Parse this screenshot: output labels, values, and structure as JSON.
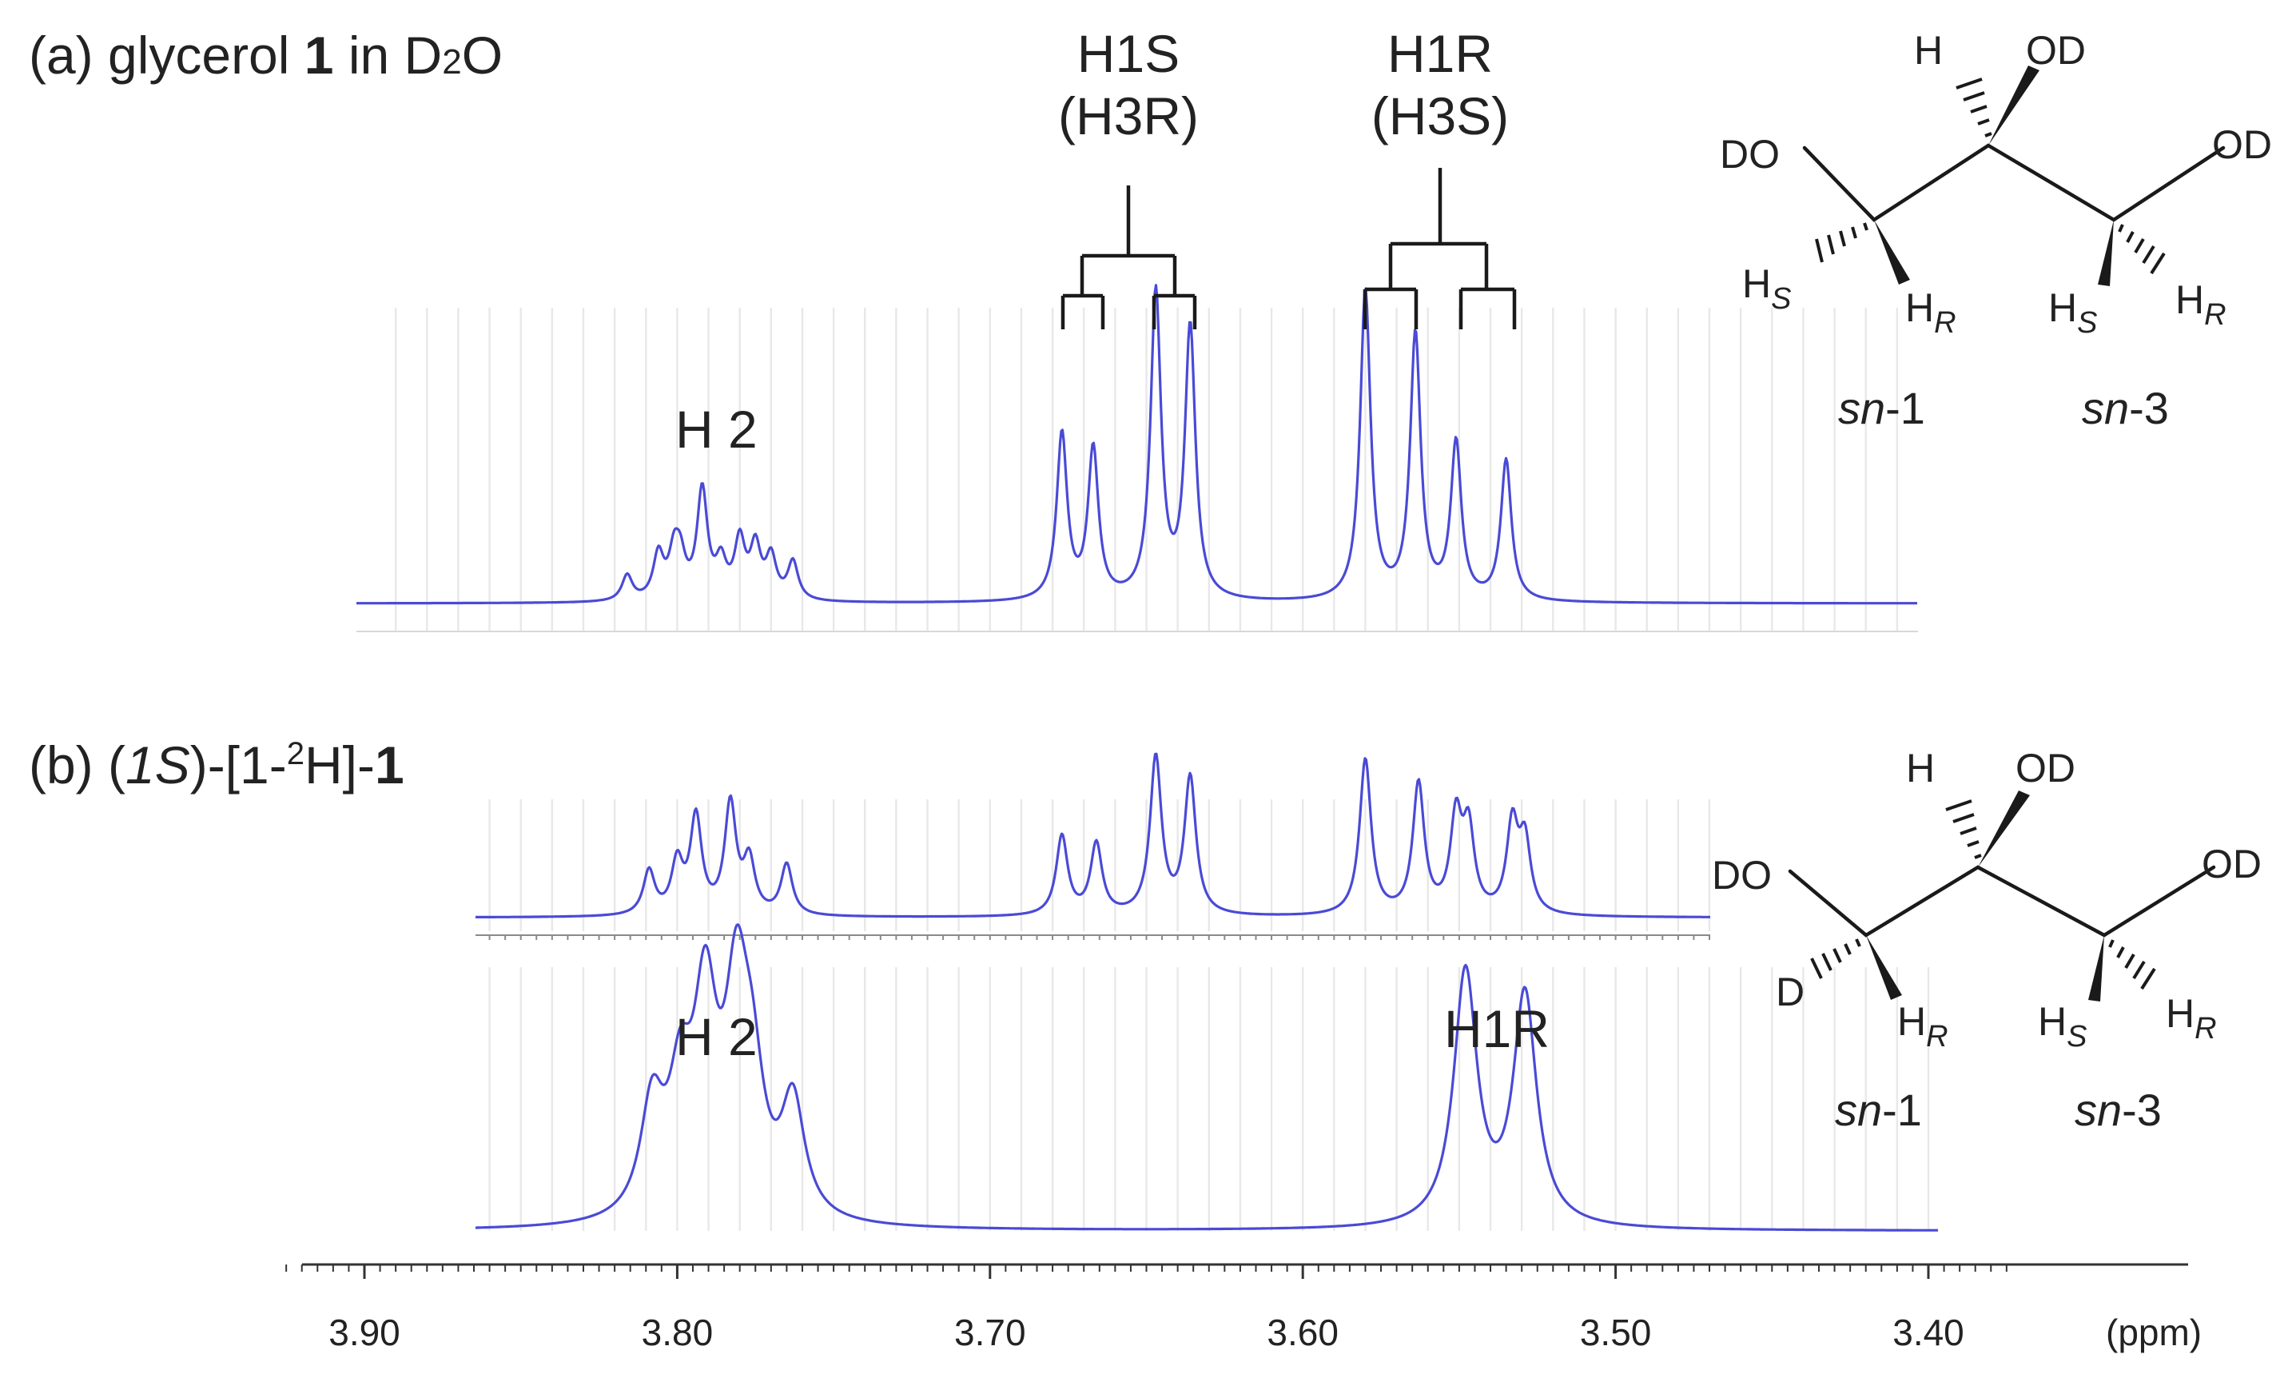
{
  "colors": {
    "trace": "#4a4ad6",
    "ink": "#222222",
    "guide": "#e8e8e8"
  },
  "chart_data": [
    {
      "type": "line",
      "panel": "(a)",
      "title_parts": {
        "prefix": "(a)  glycerol ",
        "bold": "1",
        "mid": " in D",
        "sub": "2",
        "suffix": "O"
      },
      "x_range_ppm": [
        3.4,
        3.9
      ],
      "x_reversed": true,
      "peak_labels": {
        "h2": "H 2",
        "h1s_top": "H1S",
        "h1s_bottom": "(H3R)",
        "h1r_top": "H1R",
        "h1r_bottom": "(H3S)"
      },
      "x": [
        3.816,
        3.806,
        3.801,
        3.799,
        3.792,
        3.786,
        3.78,
        3.775,
        3.77,
        3.763,
        3.677,
        3.667,
        3.647,
        3.636,
        3.58,
        3.564,
        3.551,
        3.535
      ],
      "y": [
        0.08,
        0.14,
        0.13,
        0.11,
        0.34,
        0.11,
        0.18,
        0.16,
        0.13,
        0.12,
        0.52,
        0.47,
        0.96,
        0.85,
        0.97,
        0.83,
        0.49,
        0.44
      ],
      "linewidth_ppm": 0.002
    },
    {
      "type": "line",
      "panel": "(b)",
      "title_parts": {
        "prefix": "(b)  (",
        "italic": "1S",
        "mid": ")-[1-",
        "sup": "2",
        "suffix": "H]-",
        "bold": "1"
      },
      "x_range_ppm": [
        3.4,
        3.9
      ],
      "x_reversed": true,
      "traces": [
        {
          "name": "upper",
          "x": [
            3.809,
            3.8,
            3.794,
            3.783,
            3.777,
            3.765,
            3.677,
            3.666,
            3.647,
            3.636,
            3.58,
            3.563,
            3.551,
            3.547,
            3.533,
            3.529
          ],
          "y": [
            0.26,
            0.3,
            0.57,
            0.65,
            0.31,
            0.3,
            0.47,
            0.42,
            0.93,
            0.81,
            0.92,
            0.77,
            0.55,
            0.48,
            0.52,
            0.42
          ],
          "linewidth_ppm": 0.0022
        },
        {
          "name": "lower",
          "x": [
            3.808,
            3.799,
            3.791,
            3.781,
            3.776,
            3.763,
            3.548,
            3.529
          ],
          "y": [
            0.38,
            0.4,
            0.71,
            0.71,
            0.39,
            0.4,
            0.88,
            0.8
          ],
          "linewidth_ppm": 0.0045
        }
      ],
      "peak_labels": {
        "h2": "H 2",
        "h1r": "H1R"
      }
    }
  ],
  "axis": {
    "ticks": [
      "3.90",
      "3.80",
      "3.70",
      "3.60",
      "3.50",
      "3.40"
    ],
    "unit": "(ppm)"
  },
  "structure_labels": {
    "h": "H",
    "od": "OD",
    "do": "DO",
    "d": "D",
    "h_sub_s": "S",
    "h_sub_r": "R",
    "sn1": "sn-1",
    "sn3": "sn-3"
  }
}
